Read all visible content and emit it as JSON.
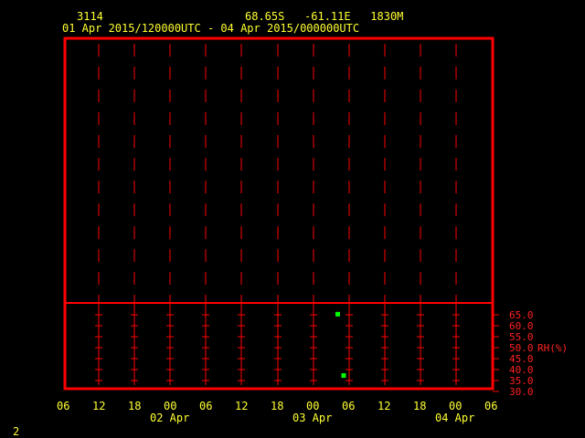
{
  "header": {
    "station": "3114",
    "location": "68.65S   -61.11E   1830M",
    "time_range": "01 Apr 2015/120000UTC - 04 Apr 2015/000000UTC"
  },
  "footer": {
    "page_number": "2"
  },
  "colors": {
    "frame": "#ff0000",
    "text": "#ffff33",
    "axis_label": "#ff2020",
    "points": "#00ff00"
  },
  "chart_data": {
    "type": "scatter",
    "x_tick_labels": [
      "06",
      "12",
      "18",
      "00",
      "06",
      "12",
      "18",
      "00",
      "06",
      "12",
      "18",
      "00",
      "06"
    ],
    "x_date_labels": [
      "02 Apr",
      "03 Apr",
      "04 Apr"
    ],
    "xlim": [
      "01 Apr 06Z",
      "04 Apr 06Z"
    ],
    "ylabel": "RH(%)",
    "y_tick_labels": [
      "65.0",
      "60.0",
      "55.0",
      "50.0",
      "45.0",
      "40.0",
      "35.0",
      "30.0"
    ],
    "ylim": [
      30,
      65
    ],
    "grid": true,
    "series": [
      {
        "points": [
          {
            "x": "03 Apr 04Z",
            "y": 65.5
          },
          {
            "x": "03 Apr 05Z",
            "y": 37.5
          }
        ]
      }
    ]
  }
}
